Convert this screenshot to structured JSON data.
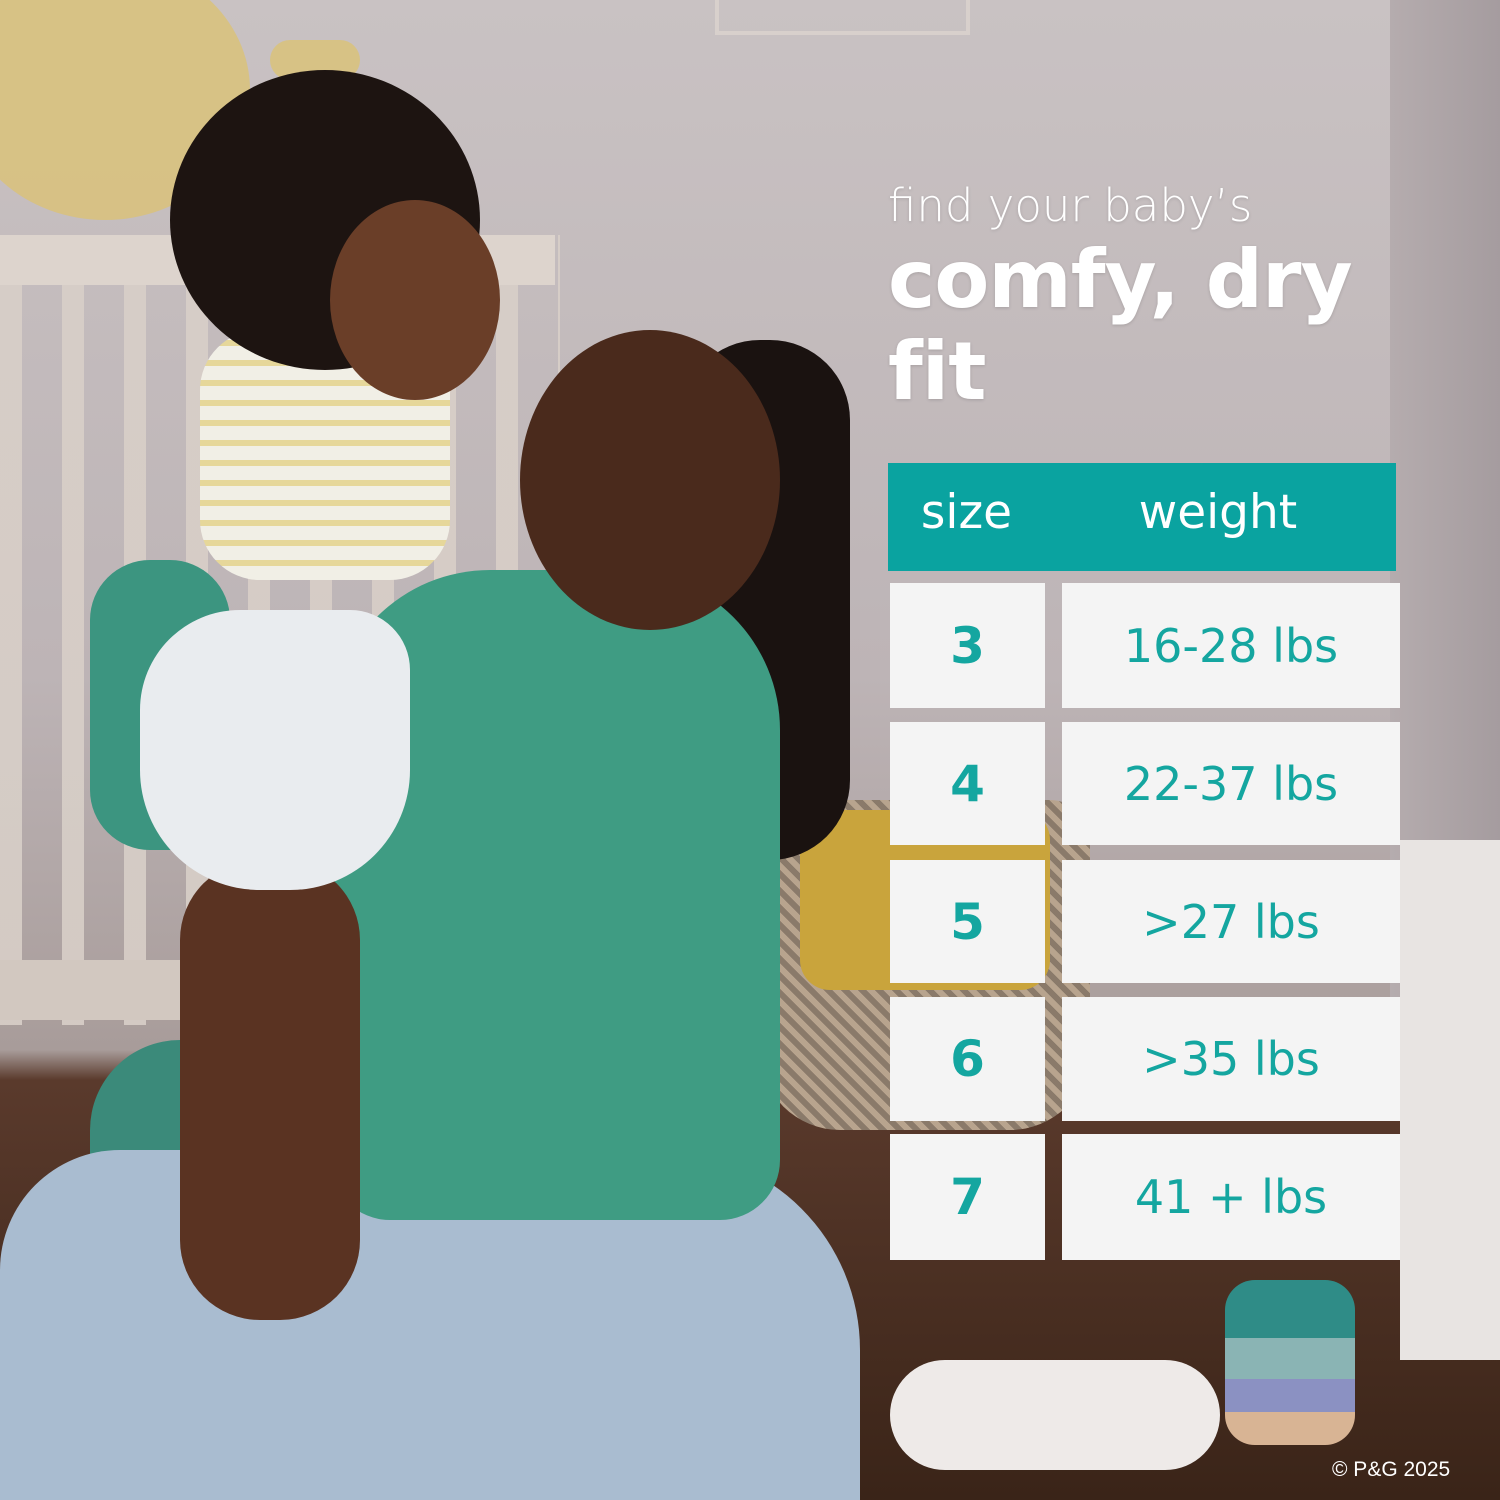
{
  "headline": {
    "line1": "find your baby’s",
    "line2": "comfy, dry fit"
  },
  "table": {
    "headers": {
      "size": "size",
      "weight": "weight"
    },
    "rows": [
      {
        "size": "3",
        "weight": "16-28 lbs"
      },
      {
        "size": "4",
        "weight": "22-37 lbs"
      },
      {
        "size": "5",
        "weight": ">27 lbs"
      },
      {
        "size": "6",
        "weight": ">35 lbs"
      },
      {
        "size": "7",
        "weight": "41 + lbs"
      }
    ]
  },
  "copyright": "© P&G 2025",
  "colors": {
    "accent": "#0aa3a0",
    "cell": "#f4f4f4",
    "text_teal": "#14a6a0"
  }
}
